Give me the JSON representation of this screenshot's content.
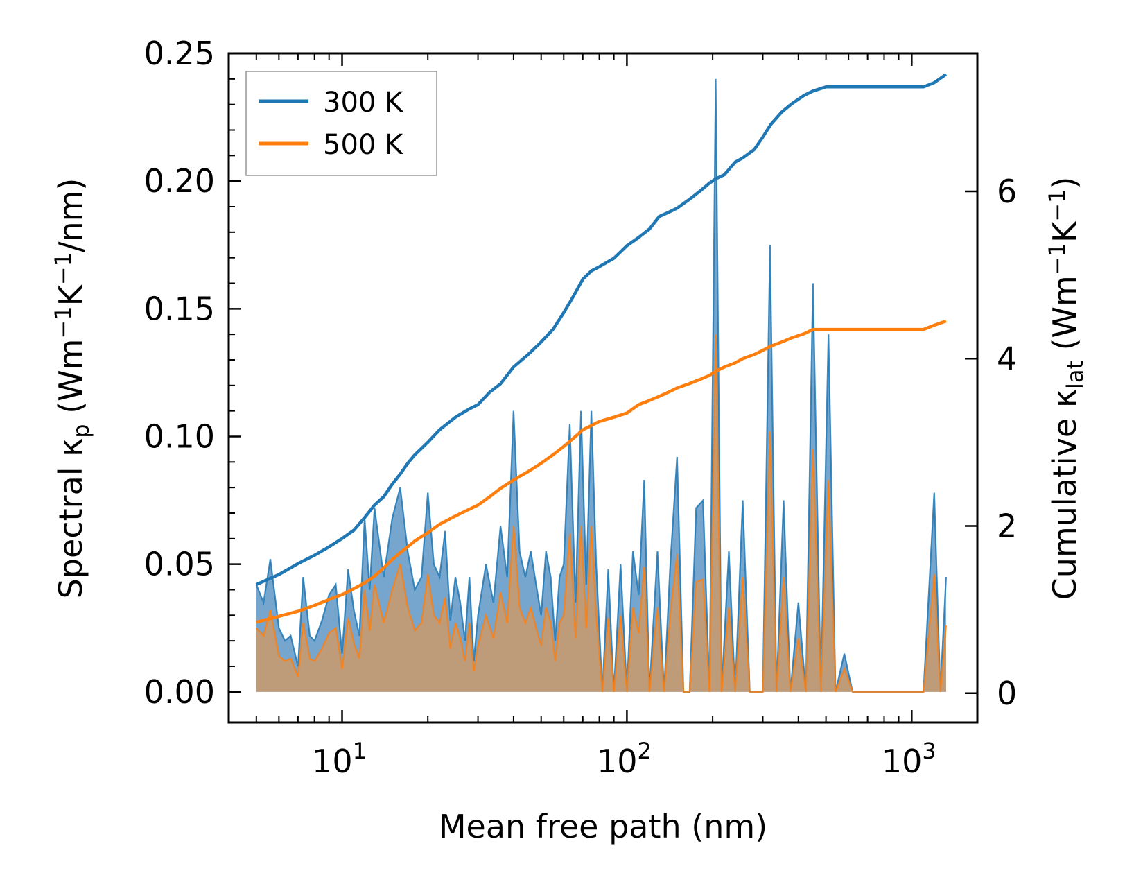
{
  "chart_data": {
    "type": "area",
    "xscale": "log",
    "xlabel": "Mean free path (nm)",
    "ylabel_left": "Spectral κp (Wm−1K−1/nm)",
    "ylabel_right": "Cumulative κlat (Wm−1K−1)",
    "xlim": [
      4.0,
      1700
    ],
    "ylim_left": [
      -0.012,
      0.25
    ],
    "ylim_right": [
      -0.35,
      7.65
    ],
    "left_ticks": [
      "0.00",
      "0.05",
      "0.10",
      "0.15",
      "0.20",
      "0.25"
    ],
    "left_tick_values": [
      0.0,
      0.05,
      0.1,
      0.15,
      0.2,
      0.25
    ],
    "right_ticks": [
      "0",
      "2",
      "4",
      "6"
    ],
    "right_tick_values": [
      0,
      2,
      4,
      6
    ],
    "x_ticks": [
      {
        "base": "10",
        "exp": "1",
        "value": 10
      },
      {
        "base": "10",
        "exp": "2",
        "value": 100
      },
      {
        "base": "10",
        "exp": "3",
        "value": 1000
      }
    ],
    "legend": {
      "position": "top-left",
      "entries": [
        "300 K",
        "500 K"
      ]
    },
    "colors": {
      "300 K": "#1f77b4",
      "500 K": "#ff7f0e",
      "spectral_300_fill": "#6fa0cb",
      "spectral_500_fill": "#c49a72"
    },
    "series": [
      {
        "name": "300 K",
        "role": "spectral",
        "axis": "left",
        "x": [
          5.0,
          5.3,
          5.6,
          6.0,
          6.3,
          6.6,
          7.0,
          7.3,
          7.7,
          8.0,
          8.5,
          9.0,
          9.5,
          10.0,
          10.5,
          11.0,
          11.5,
          12.0,
          12.5,
          13.0,
          14.0,
          15.0,
          16.0,
          17.0,
          18.0,
          19.0,
          20.0,
          21.0,
          22.0,
          23.0,
          24.0,
          25.0,
          26.0,
          27.0,
          28.0,
          29.0,
          30.0,
          32.0,
          34.0,
          36.0,
          38.0,
          40.0,
          42.0,
          44.0,
          46.0,
          48.0,
          50.0,
          52.0,
          54.0,
          56.0,
          58.0,
          60.0,
          63.0,
          66.0,
          69.0,
          72.0,
          75.0,
          78.0,
          82.0,
          86.0,
          90.0,
          95.0,
          100.0,
          105.0,
          110.0,
          115.0,
          120.0,
          128.0,
          135.0,
          142.0,
          150.0,
          158.0,
          166.0,
          175.0,
          185.0,
          195.0,
          205.0,
          215.0,
          228.0,
          240.0,
          255.0,
          270.0,
          285.0,
          300.0,
          318.0,
          335.0,
          355.0,
          375.0,
          400.0,
          425.0,
          450.0,
          480.0,
          510.0,
          540.0,
          580.0,
          620.0,
          700.0,
          800.0,
          950.0,
          1100.0,
          1200.0,
          1260.0,
          1320.0
        ],
        "values": [
          0.042,
          0.035,
          0.052,
          0.025,
          0.02,
          0.022,
          0.01,
          0.045,
          0.022,
          0.02,
          0.028,
          0.038,
          0.042,
          0.015,
          0.048,
          0.032,
          0.022,
          0.068,
          0.04,
          0.072,
          0.045,
          0.068,
          0.08,
          0.055,
          0.04,
          0.045,
          0.078,
          0.05,
          0.045,
          0.063,
          0.028,
          0.045,
          0.035,
          0.02,
          0.045,
          0.012,
          0.03,
          0.05,
          0.035,
          0.065,
          0.045,
          0.11,
          0.055,
          0.045,
          0.055,
          0.042,
          0.03,
          0.055,
          0.045,
          0.02,
          0.045,
          0.05,
          0.105,
          0.035,
          0.11,
          0.042,
          0.11,
          0.05,
          0.0,
          0.048,
          0.0,
          0.05,
          0.0,
          0.055,
          0.038,
          0.083,
          0.0,
          0.055,
          0.0,
          0.05,
          0.092,
          0.0,
          0.0,
          0.072,
          0.075,
          0.0,
          0.24,
          0.0,
          0.055,
          0.0,
          0.075,
          0.0,
          0.0,
          0.0,
          0.175,
          0.0,
          0.075,
          0.0,
          0.035,
          0.0,
          0.16,
          0.0,
          0.14,
          0.0,
          0.015,
          0.0,
          0.0,
          0.0,
          0.0,
          0.0,
          0.078,
          0.0,
          0.045
        ]
      },
      {
        "name": "500 K",
        "role": "spectral",
        "axis": "left",
        "x": [
          5.0,
          5.3,
          5.6,
          6.0,
          6.3,
          6.6,
          7.0,
          7.3,
          7.7,
          8.0,
          8.5,
          9.0,
          9.5,
          10.0,
          10.5,
          11.0,
          11.5,
          12.0,
          12.5,
          13.0,
          14.0,
          15.0,
          16.0,
          17.0,
          18.0,
          19.0,
          20.0,
          21.0,
          22.0,
          23.0,
          24.0,
          25.0,
          26.0,
          27.0,
          28.0,
          29.0,
          30.0,
          32.0,
          34.0,
          36.0,
          38.0,
          40.0,
          42.0,
          44.0,
          46.0,
          48.0,
          50.0,
          52.0,
          54.0,
          56.0,
          58.0,
          60.0,
          63.0,
          66.0,
          69.0,
          72.0,
          75.0,
          78.0,
          82.0,
          86.0,
          90.0,
          95.0,
          100.0,
          105.0,
          110.0,
          115.0,
          120.0,
          128.0,
          135.0,
          142.0,
          150.0,
          158.0,
          166.0,
          175.0,
          185.0,
          195.0,
          205.0,
          215.0,
          228.0,
          240.0,
          255.0,
          270.0,
          285.0,
          300.0,
          318.0,
          335.0,
          355.0,
          375.0,
          400.0,
          425.0,
          450.0,
          480.0,
          510.0,
          540.0,
          580.0,
          620.0,
          700.0,
          800.0,
          950.0,
          1100.0,
          1200.0,
          1260.0,
          1320.0
        ],
        "values": [
          0.025,
          0.022,
          0.032,
          0.014,
          0.012,
          0.013,
          0.006,
          0.027,
          0.013,
          0.012,
          0.017,
          0.023,
          0.025,
          0.009,
          0.029,
          0.019,
          0.013,
          0.04,
          0.024,
          0.042,
          0.027,
          0.04,
          0.05,
          0.033,
          0.024,
          0.027,
          0.046,
          0.03,
          0.027,
          0.037,
          0.017,
          0.027,
          0.021,
          0.012,
          0.027,
          0.008,
          0.018,
          0.03,
          0.021,
          0.039,
          0.027,
          0.065,
          0.033,
          0.027,
          0.033,
          0.025,
          0.018,
          0.033,
          0.027,
          0.012,
          0.027,
          0.03,
          0.062,
          0.021,
          0.065,
          0.025,
          0.065,
          0.03,
          0.0,
          0.029,
          0.0,
          0.03,
          0.0,
          0.033,
          0.023,
          0.049,
          0.0,
          0.033,
          0.0,
          0.03,
          0.054,
          0.0,
          0.0,
          0.043,
          0.044,
          0.0,
          0.14,
          0.0,
          0.033,
          0.0,
          0.045,
          0.0,
          0.0,
          0.0,
          0.102,
          0.0,
          0.045,
          0.0,
          0.021,
          0.0,
          0.095,
          0.0,
          0.083,
          0.0,
          0.009,
          0.0,
          0.0,
          0.0,
          0.0,
          0.0,
          0.046,
          0.0,
          0.026
        ]
      },
      {
        "name": "300 K",
        "role": "cumulative",
        "axis": "right",
        "x": [
          5.0,
          6.0,
          7.0,
          8.0,
          9.0,
          10.0,
          11.0,
          12.0,
          13.0,
          14.0,
          15.0,
          16.0,
          17.0,
          18.0,
          20.0,
          22.0,
          25.0,
          28.0,
          30.0,
          33.0,
          36.0,
          40.0,
          45.0,
          50.0,
          55.0,
          60.0,
          65.0,
          70.0,
          75.0,
          80.0,
          90.0,
          100.0,
          110.0,
          120.0,
          130.0,
          140.0,
          150.0,
          165.0,
          180.0,
          195.0,
          205.0,
          220.0,
          240.0,
          255.0,
          280.0,
          300.0,
          320.0,
          350.0,
          380.0,
          420.0,
          450.0,
          500.0,
          550.0,
          700.0,
          900.0,
          1100.0,
          1200.0,
          1320.0
        ],
        "values": [
          1.3,
          1.42,
          1.55,
          1.65,
          1.75,
          1.85,
          1.95,
          2.1,
          2.25,
          2.35,
          2.5,
          2.62,
          2.75,
          2.85,
          3.0,
          3.15,
          3.3,
          3.4,
          3.45,
          3.6,
          3.7,
          3.9,
          4.05,
          4.2,
          4.35,
          4.55,
          4.75,
          4.95,
          5.05,
          5.1,
          5.2,
          5.35,
          5.45,
          5.55,
          5.7,
          5.75,
          5.8,
          5.9,
          6.0,
          6.1,
          6.15,
          6.2,
          6.35,
          6.4,
          6.5,
          6.65,
          6.8,
          6.95,
          7.05,
          7.15,
          7.2,
          7.25,
          7.25,
          7.25,
          7.25,
          7.25,
          7.3,
          7.4
        ]
      },
      {
        "name": "500 K",
        "role": "cumulative",
        "axis": "right",
        "x": [
          5.0,
          6.0,
          7.0,
          8.0,
          9.0,
          10.0,
          11.0,
          12.0,
          13.0,
          14.0,
          15.0,
          16.0,
          17.0,
          18.0,
          20.0,
          22.0,
          25.0,
          28.0,
          30.0,
          33.0,
          36.0,
          40.0,
          45.0,
          50.0,
          55.0,
          60.0,
          65.0,
          70.0,
          75.0,
          80.0,
          90.0,
          100.0,
          110.0,
          120.0,
          130.0,
          140.0,
          150.0,
          165.0,
          180.0,
          195.0,
          205.0,
          220.0,
          240.0,
          255.0,
          280.0,
          300.0,
          320.0,
          350.0,
          380.0,
          420.0,
          450.0,
          500.0,
          550.0,
          700.0,
          900.0,
          1100.0,
          1200.0,
          1320.0
        ],
        "values": [
          0.85,
          0.92,
          0.98,
          1.05,
          1.12,
          1.18,
          1.25,
          1.32,
          1.4,
          1.5,
          1.6,
          1.68,
          1.75,
          1.82,
          1.92,
          2.02,
          2.12,
          2.2,
          2.25,
          2.35,
          2.45,
          2.55,
          2.65,
          2.75,
          2.85,
          2.95,
          3.05,
          3.15,
          3.2,
          3.25,
          3.3,
          3.35,
          3.45,
          3.5,
          3.55,
          3.6,
          3.65,
          3.7,
          3.75,
          3.8,
          3.85,
          3.9,
          3.95,
          4.0,
          4.05,
          4.1,
          4.15,
          4.2,
          4.25,
          4.3,
          4.35,
          4.35,
          4.35,
          4.35,
          4.35,
          4.35,
          4.4,
          4.45
        ]
      }
    ]
  }
}
